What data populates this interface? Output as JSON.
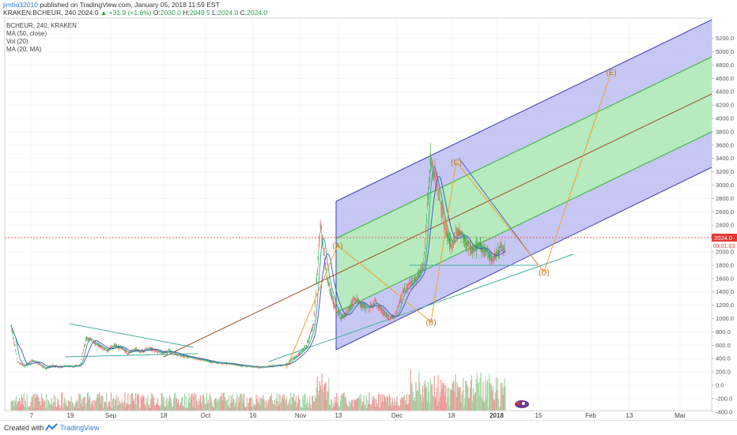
{
  "header": {
    "author": "jimbo32010",
    "published": "published on TradingView.com, January 05, 2018 11:59 EST",
    "symbol": "KRAKEN:BCHEUR, 240",
    "price": "2024.0",
    "change": "+31.9 (+1.6%)",
    "o_label": "O:",
    "o_value": "2030.0",
    "h_label": "H:",
    "h_value": "2049.5",
    "l_label": "L:",
    "l_value": "2024.0",
    "c_label": "C:",
    "c_value": "2024.0"
  },
  "legend": [
    "BCHEUR, 240, KRAKEN",
    "MA (50, close)",
    "Vol (20)",
    "MA (20, MA)"
  ],
  "footer": {
    "created": "Created with",
    "brand": "TradingView"
  },
  "colors": {
    "channel_outer": "#3c3cb4",
    "channel_fill_outer": "#b4b4f0",
    "channel_inner": "#32b432",
    "channel_fill_inner": "#b4f0b4",
    "median": "#a05028",
    "wave": "#f5a032",
    "up_candle": "#4caf50",
    "down_candle": "#e57373",
    "price_line": "#e53935",
    "trend": "#44b0a0"
  },
  "chart_data": {
    "type": "candlestick",
    "symbol": "BCHEUR",
    "interval": "240",
    "exchange": "KRAKEN",
    "last_price_label": "2024.0",
    "countdown_label": "03:01:03",
    "y_ticks": [
      "5200.0",
      "5000.0",
      "4800.0",
      "4600.0",
      "4400.0",
      "4200.0",
      "4000.0",
      "3800.0",
      "3600.0",
      "3400.0",
      "3200.0",
      "3000.0",
      "2800.0",
      "2600.0",
      "2400.0",
      "2200.0",
      "2000.0",
      "1800.0",
      "1600.0",
      "1400.0",
      "1200.0",
      "1000.0",
      "800.0",
      "600.0",
      "400.0",
      "200.0",
      "0.0",
      "-200.0",
      "-400.0"
    ],
    "x_ticks": [
      "7",
      "19",
      "Sep",
      "18",
      "Oct",
      "16",
      "Nov",
      "13",
      "Dec",
      "18",
      "2018",
      "15",
      "Feb",
      "13",
      "Mar"
    ],
    "price_series": [
      [
        0,
        900
      ],
      [
        1,
        350
      ],
      [
        2,
        280
      ],
      [
        3,
        380
      ],
      [
        4,
        320
      ],
      [
        5,
        250
      ],
      [
        6,
        300
      ],
      [
        7,
        270
      ],
      [
        8,
        290
      ],
      [
        9,
        280
      ],
      [
        10,
        300
      ],
      [
        11,
        720
      ],
      [
        12,
        650
      ],
      [
        13,
        580
      ],
      [
        14,
        520
      ],
      [
        15,
        600
      ],
      [
        16,
        560
      ],
      [
        17,
        480
      ],
      [
        18,
        540
      ],
      [
        19,
        500
      ],
      [
        20,
        560
      ],
      [
        21,
        520
      ],
      [
        22,
        480
      ],
      [
        23,
        520
      ],
      [
        24,
        460
      ],
      [
        25,
        440
      ],
      [
        26,
        420
      ],
      [
        27,
        400
      ],
      [
        28,
        380
      ],
      [
        29,
        350
      ],
      [
        30,
        340
      ],
      [
        31,
        330
      ],
      [
        32,
        320
      ],
      [
        33,
        300
      ],
      [
        34,
        290
      ],
      [
        35,
        280
      ],
      [
        36,
        270
      ],
      [
        37,
        275
      ],
      [
        38,
        290
      ],
      [
        39,
        300
      ],
      [
        40,
        310
      ],
      [
        41,
        400
      ],
      [
        42,
        480
      ],
      [
        43,
        600
      ],
      [
        44,
        900
      ],
      [
        45,
        2400
      ],
      [
        46,
        1600
      ],
      [
        47,
        1200
      ],
      [
        48,
        1000
      ],
      [
        49,
        1100
      ],
      [
        50,
        1300
      ],
      [
        51,
        1200
      ],
      [
        52,
        1150
      ],
      [
        53,
        1250
      ],
      [
        54,
        1100
      ],
      [
        55,
        1000
      ],
      [
        56,
        1050
      ],
      [
        57,
        1400
      ],
      [
        58,
        1500
      ],
      [
        59,
        1600
      ],
      [
        60,
        1800
      ],
      [
        61,
        3400
      ],
      [
        62,
        3000
      ],
      [
        63,
        2400
      ],
      [
        64,
        2100
      ],
      [
        65,
        2300
      ],
      [
        66,
        2200
      ],
      [
        67,
        2000
      ],
      [
        68,
        2100
      ],
      [
        69,
        2000
      ],
      [
        70,
        1900
      ],
      [
        71,
        2030
      ],
      [
        72,
        2024
      ]
    ],
    "waves": [
      {
        "label": "(A)",
        "value": 2100
      },
      {
        "label": "(B)",
        "value": 950
      },
      {
        "label": "(C)",
        "value": 3350
      },
      {
        "label": "(D)",
        "value": 1700
      },
      {
        "label": "(E)",
        "value": 4700
      }
    ]
  }
}
